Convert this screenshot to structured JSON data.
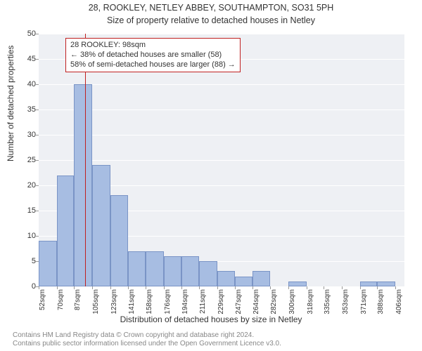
{
  "title": "28, ROOKLEY, NETLEY ABBEY, SOUTHAMPTON, SO31 5PH",
  "subtitle": "Size of property relative to detached houses in Netley",
  "y_label": "Number of detached properties",
  "x_label": "Distribution of detached houses by size in Netley",
  "chart": {
    "type": "histogram",
    "background_color": "#eef0f4",
    "grid_color": "#ffffff",
    "bar_fill": "#a7bde2",
    "bar_border": "#7a94c6",
    "marker_color": "#c02020",
    "ylim": [
      0,
      50
    ],
    "ytick_step": 5,
    "x_min": 52,
    "x_max": 415,
    "x_ticks": [
      52,
      70,
      87,
      105,
      123,
      141,
      158,
      176,
      194,
      211,
      229,
      247,
      264,
      282,
      300,
      318,
      335,
      353,
      371,
      388,
      406
    ],
    "x_tick_suffix": "sqm",
    "bars": [
      {
        "x0": 52,
        "x1": 70,
        "count": 9
      },
      {
        "x0": 70,
        "x1": 87,
        "count": 22
      },
      {
        "x0": 87,
        "x1": 105,
        "count": 40
      },
      {
        "x0": 105,
        "x1": 123,
        "count": 24
      },
      {
        "x0": 123,
        "x1": 141,
        "count": 18
      },
      {
        "x0": 141,
        "x1": 158,
        "count": 7
      },
      {
        "x0": 158,
        "x1": 176,
        "count": 7
      },
      {
        "x0": 176,
        "x1": 194,
        "count": 6
      },
      {
        "x0": 194,
        "x1": 211,
        "count": 6
      },
      {
        "x0": 211,
        "x1": 229,
        "count": 5
      },
      {
        "x0": 229,
        "x1": 247,
        "count": 3
      },
      {
        "x0": 247,
        "x1": 264,
        "count": 2
      },
      {
        "x0": 264,
        "x1": 282,
        "count": 3
      },
      {
        "x0": 282,
        "x1": 300,
        "count": 0
      },
      {
        "x0": 300,
        "x1": 318,
        "count": 1
      },
      {
        "x0": 318,
        "x1": 335,
        "count": 0
      },
      {
        "x0": 335,
        "x1": 353,
        "count": 0
      },
      {
        "x0": 353,
        "x1": 371,
        "count": 0
      },
      {
        "x0": 371,
        "x1": 388,
        "count": 1
      },
      {
        "x0": 388,
        "x1": 406,
        "count": 1
      }
    ],
    "marker_x": 98
  },
  "callout": {
    "line1": "28 ROOKLEY: 98sqm",
    "line2": "← 38% of detached houses are smaller (58)",
    "line3": "58% of semi-detached houses are larger (88) →"
  },
  "footer": {
    "line1": "Contains HM Land Registry data © Crown copyright and database right 2024.",
    "line2": "Contains public sector information licensed under the Open Government Licence v3.0."
  }
}
